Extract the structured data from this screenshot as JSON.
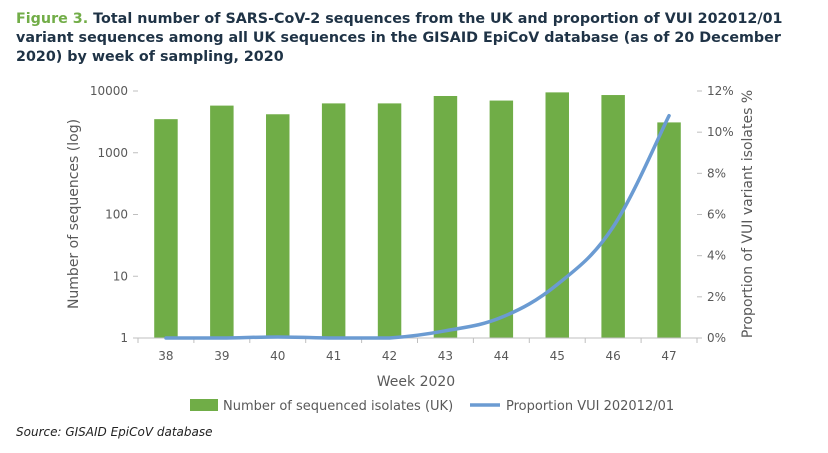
{
  "caption": {
    "label": "Figure 3.",
    "text": "Total number of SARS-CoV-2 sequences from the UK and proportion of VUI 202012/01 variant sequences among all UK sequences in the GISAID EpiCoV database (as of 20 December 2020) by week of sampling, 2020"
  },
  "source": "Source: GISAID EpiCoV database",
  "colors": {
    "bar": "#70ad47",
    "line": "#6b9bd2",
    "axis": "#bfbfbf",
    "text": "#595959"
  },
  "chart_data": {
    "type": "bar+line",
    "xlabel": "Week 2020",
    "ylabel": "Number of sequences (log)",
    "y2label": "Proportion of VUI variant isolates %",
    "categories": [
      "38",
      "39",
      "40",
      "41",
      "42",
      "43",
      "44",
      "45",
      "46",
      "47"
    ],
    "y_scale": "log",
    "ylim": [
      1,
      10000
    ],
    "y_ticks": [
      1,
      10,
      100,
      1000,
      10000
    ],
    "y2lim": [
      0,
      12
    ],
    "y2_ticks": [
      0,
      2,
      4,
      6,
      8,
      10,
      12
    ],
    "y2_tick_labels": [
      "0%",
      "2%",
      "4%",
      "6%",
      "8%",
      "10%",
      "12%"
    ],
    "series": [
      {
        "name": "Number of sequenced isolates (UK)",
        "type": "bar",
        "axis": "left",
        "values": [
          3500,
          5800,
          4200,
          6300,
          6300,
          8300,
          7000,
          9500,
          8600,
          3100
        ]
      },
      {
        "name": "Proportion VUI 202012/01",
        "type": "line",
        "axis": "right",
        "values": [
          0,
          0,
          0.05,
          0,
          0,
          0.35,
          1.0,
          2.6,
          5.4,
          10.8
        ]
      }
    ]
  }
}
